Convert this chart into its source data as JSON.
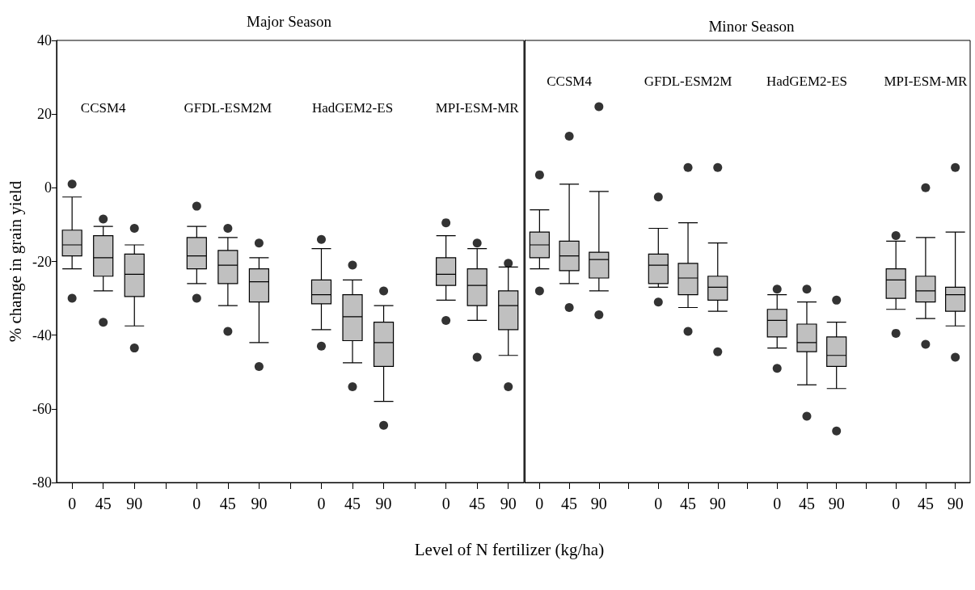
{
  "chart_data": [
    {
      "type": "box",
      "title": "Major Season",
      "ylabel": "% change in grain yield",
      "xlabel": "Level of N fertilizer (kg/ha)",
      "color": "#c0c0c0",
      "categories": [
        "0",
        "45",
        "90",
        null,
        "0",
        "45",
        "90",
        null,
        "0",
        "45",
        "90",
        null,
        "0",
        "45",
        "90"
      ],
      "annotations": [
        "CCSM4",
        "GFDL-ESM2M",
        "HadGEM2-ES",
        "MPI-ESM-MR"
      ],
      "ylim": [
        -80,
        40
      ],
      "yticks": [
        -80,
        -60,
        -40,
        -20,
        0,
        20,
        40
      ],
      "grid": false,
      "boxes": [
        {
          "low": -22,
          "q1": -18.5,
          "median": -15.5,
          "q3": -11.5,
          "high": -2.5,
          "outliers": [
            1,
            -30
          ]
        },
        {
          "low": -28,
          "q1": -24,
          "median": -19,
          "q3": -13,
          "high": -10.5,
          "outliers": [
            -8.5,
            -36.5
          ]
        },
        {
          "low": -37.5,
          "q1": -29.5,
          "median": -23.5,
          "q3": -18,
          "high": -15.5,
          "outliers": [
            -11,
            -43.5
          ]
        },
        null,
        {
          "low": -26,
          "q1": -22,
          "median": -18.5,
          "q3": -13.5,
          "high": -10.5,
          "outliers": [
            -5,
            -30
          ]
        },
        {
          "low": -32,
          "q1": -26,
          "median": -21,
          "q3": -17,
          "high": -13.5,
          "outliers": [
            -11,
            -39
          ]
        },
        {
          "low": -42,
          "q1": -31,
          "median": -25.5,
          "q3": -22,
          "high": -19,
          "outliers": [
            -15,
            -48.5
          ]
        },
        null,
        {
          "low": -38.5,
          "q1": -31.5,
          "median": -29,
          "q3": -25,
          "high": -16.5,
          "outliers": [
            -14,
            -43
          ]
        },
        {
          "low": -47.5,
          "q1": -41.5,
          "median": -35,
          "q3": -29,
          "high": -25,
          "outliers": [
            -21,
            -54
          ]
        },
        {
          "low": -58,
          "q1": -48.5,
          "median": -42,
          "q3": -36.5,
          "high": -32,
          "outliers": [
            -28,
            -64.5
          ]
        },
        null,
        {
          "low": -30.5,
          "q1": -26.5,
          "median": -23.5,
          "q3": -19,
          "high": -13,
          "outliers": [
            -9.5,
            -36
          ]
        },
        {
          "low": -36,
          "q1": -32,
          "median": -26.5,
          "q3": -22,
          "high": -16.5,
          "outliers": [
            -15,
            -46
          ]
        },
        {
          "low": -45.5,
          "q1": -38.5,
          "median": -32,
          "q3": -28,
          "high": -21.5,
          "outliers": [
            -20.5,
            -54
          ]
        }
      ]
    },
    {
      "type": "box",
      "title": "Minor Season",
      "color": "#c0c0c0",
      "tick_labels": "x",
      "categories": [
        "0",
        "45",
        "90",
        null,
        "0",
        "45",
        "90",
        null,
        "0",
        "45",
        "90",
        null,
        "0",
        "45",
        "90"
      ],
      "annotations": [
        "CCSM4",
        "GFDL-ESM2M",
        "HadGEM2-ES",
        "MPI-ESM-MR"
      ],
      "ylim": [
        -80,
        40
      ],
      "grid": false,
      "boxes": [
        {
          "low": -22,
          "q1": -19,
          "median": -15.5,
          "q3": -12,
          "high": -6,
          "outliers": [
            3.5,
            -28
          ]
        },
        {
          "low": -26,
          "q1": -22.5,
          "median": -18.5,
          "q3": -14.5,
          "high": 1,
          "outliers": [
            14,
            -32.5
          ]
        },
        {
          "low": -28,
          "q1": -24.5,
          "median": -19.5,
          "q3": -17.5,
          "high": -1,
          "outliers": [
            22,
            -34.5
          ]
        },
        null,
        {
          "low": -27,
          "q1": -26,
          "median": -21,
          "q3": -18,
          "high": -11,
          "outliers": [
            -2.5,
            -31
          ]
        },
        {
          "low": -32.5,
          "q1": -29,
          "median": -24.5,
          "q3": -20.5,
          "high": -9.5,
          "outliers": [
            5.5,
            -39
          ]
        },
        {
          "low": -33.5,
          "q1": -30.5,
          "median": -27,
          "q3": -24,
          "high": -15,
          "outliers": [
            5.5,
            -44.5
          ]
        },
        null,
        {
          "low": -43.5,
          "q1": -40.5,
          "median": -36,
          "q3": -33,
          "high": -29,
          "outliers": [
            -27.5,
            -49
          ]
        },
        {
          "low": -53.5,
          "q1": -44.5,
          "median": -42,
          "q3": -37,
          "high": -31,
          "outliers": [
            -27.5,
            -62
          ]
        },
        {
          "low": -54.5,
          "q1": -48.5,
          "median": -45.5,
          "q3": -40.5,
          "high": -36.5,
          "outliers": [
            -30.5,
            -66
          ]
        },
        null,
        {
          "low": -33,
          "q1": -30,
          "median": -25,
          "q3": -22,
          "high": -14.5,
          "outliers": [
            -13,
            -39.5
          ]
        },
        {
          "low": -35.5,
          "q1": -31,
          "median": -28,
          "q3": -24,
          "high": -13.5,
          "outliers": [
            0,
            -42.5
          ]
        },
        {
          "low": -37.5,
          "q1": -33.5,
          "median": -29,
          "q3": -27,
          "high": -12,
          "outliers": [
            5.5,
            -46
          ]
        }
      ]
    }
  ]
}
